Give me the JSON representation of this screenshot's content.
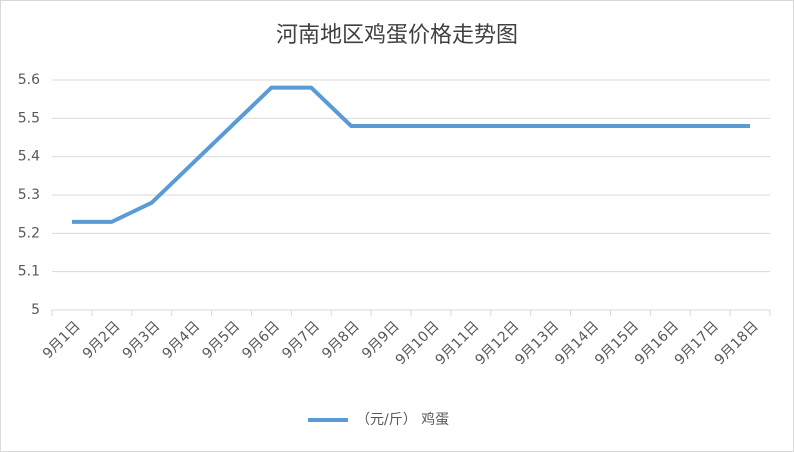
{
  "chart_data": {
    "type": "line",
    "title": "河南地区鸡蛋价格走势图",
    "categories": [
      "9月1日",
      "9月2日",
      "9月3日",
      "9月4日",
      "9月5日",
      "9月6日",
      "9月7日",
      "9月8日",
      "9月9日",
      "9月10日",
      "9月11日",
      "9月12日",
      "9月13日",
      "9月14日",
      "9月15日",
      "9月16日",
      "9月17日",
      "9月18日"
    ],
    "series": [
      {
        "name": "（元/斤） 鸡蛋",
        "color": "#5b9bd5",
        "values": [
          5.23,
          5.23,
          5.28,
          5.38,
          5.48,
          5.58,
          5.58,
          5.48,
          5.48,
          5.48,
          5.48,
          5.48,
          5.48,
          5.48,
          5.48,
          5.48,
          5.48,
          5.48
        ]
      }
    ],
    "ylim": [
      5,
      5.6
    ],
    "yticks": [
      5,
      5.1,
      5.2,
      5.3,
      5.4,
      5.5,
      5.6
    ],
    "grid": true,
    "legend": "bottom"
  }
}
